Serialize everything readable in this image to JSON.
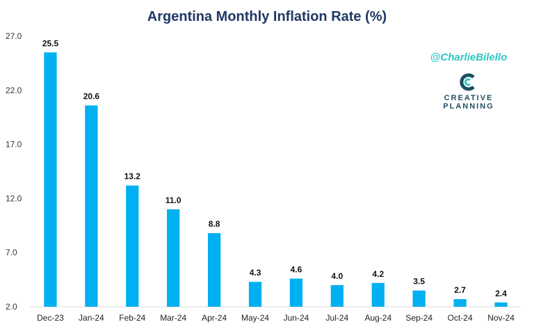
{
  "chart_data": {
    "type": "bar",
    "title": "Argentina Monthly Inflation Rate (%)",
    "xlabel": "",
    "ylabel": "",
    "categories": [
      "Dec-23",
      "Jan-24",
      "Feb-24",
      "Mar-24",
      "Apr-24",
      "May-24",
      "Jun-24",
      "Jul-24",
      "Aug-24",
      "Sep-24",
      "Oct-24",
      "Nov-24"
    ],
    "values": [
      25.5,
      20.6,
      13.2,
      11.0,
      8.8,
      4.3,
      4.6,
      4.0,
      4.2,
      3.5,
      2.7,
      2.4
    ],
    "data_labels": [
      "25.5",
      "20.6",
      "13.2",
      "11.0",
      "8.8",
      "4.3",
      "4.6",
      "4.0",
      "4.2",
      "3.5",
      "2.7",
      "2.4"
    ],
    "yticks": [
      "2.0",
      "7.0",
      "12.0",
      "17.0",
      "22.0",
      "27.0"
    ],
    "ylim": [
      2,
      27
    ],
    "grid": false,
    "bar_color": "#00b0f0"
  },
  "annotations": {
    "handle": "@CharlieBilello",
    "logo_line1": "CREATIVE",
    "logo_line2": "PLANNING"
  }
}
